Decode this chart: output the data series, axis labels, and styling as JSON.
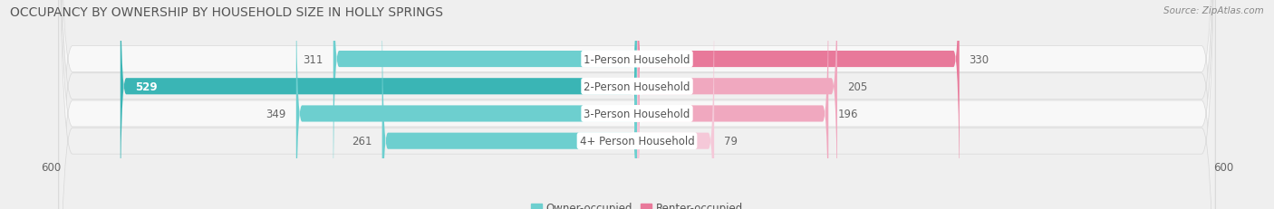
{
  "title": "OCCUPANCY BY OWNERSHIP BY HOUSEHOLD SIZE IN HOLLY SPRINGS",
  "source": "Source: ZipAtlas.com",
  "categories": [
    "1-Person Household",
    "2-Person Household",
    "3-Person Household",
    "4+ Person Household"
  ],
  "owner_values": [
    311,
    529,
    349,
    261
  ],
  "renter_values": [
    330,
    205,
    196,
    79
  ],
  "owner_color_dark": "#3ab5b5",
  "owner_color_light": "#6dcfcf",
  "renter_color_dark": "#e8799a",
  "renter_color_light": "#f0a8bf",
  "renter_color_lightest": "#f5c8d8",
  "axis_max": 600,
  "bg_color": "#efefef",
  "row_colors": [
    "#f8f8f8",
    "#f0f0f0",
    "#f8f8f8",
    "#f0f0f0"
  ],
  "title_fontsize": 10,
  "label_fontsize": 8.5,
  "value_fontsize": 8.5,
  "tick_fontsize": 8.5,
  "legend_fontsize": 8.5,
  "source_fontsize": 7.5
}
